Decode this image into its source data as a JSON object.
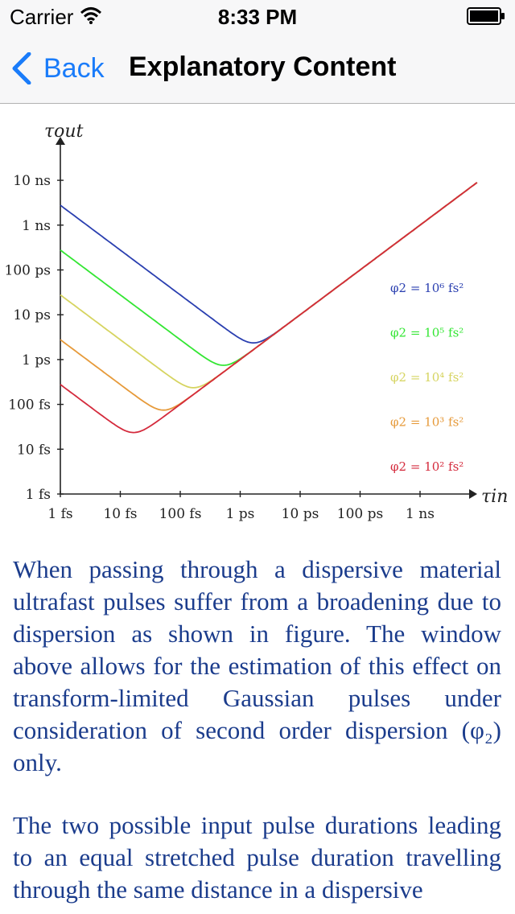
{
  "status_bar": {
    "carrier": "Carrier",
    "time": "8:33 PM"
  },
  "nav": {
    "back_label": "Back",
    "title": "Explanatory Content"
  },
  "chart_data": {
    "type": "line",
    "x_scale": "log",
    "y_scale": "log",
    "xlabel": "τin",
    "ylabel": "τout",
    "x_ticks": [
      "1 fs",
      "10 fs",
      "100 fs",
      "1 ps",
      "10 ps",
      "100 ps",
      "1 ns"
    ],
    "y_ticks": [
      "1 fs",
      "10 fs",
      "100 fs",
      "1 ps",
      "10 ps",
      "100 ps",
      "1 ns",
      "10 ns"
    ],
    "x_tick_values_s": [
      1e-15,
      1e-14,
      1e-13,
      1e-12,
      1e-11,
      1e-10,
      1e-09
    ],
    "y_tick_values_s": [
      1e-15,
      1e-14,
      1e-13,
      1e-12,
      1e-11,
      1e-10,
      1e-09,
      1e-08
    ],
    "series": [
      {
        "name": "φ2 = 10⁶ fs²",
        "phi2_fs2": 1000000,
        "color": "#2a3fb0"
      },
      {
        "name": "φ2 = 10⁵ fs²",
        "phi2_fs2": 100000,
        "color": "#33e633"
      },
      {
        "name": "φ2 = 10⁴ fs²",
        "phi2_fs2": 10000,
        "color": "#d6d460"
      },
      {
        "name": "φ2 = 10³ fs²",
        "phi2_fs2": 1000,
        "color": "#e69a3a"
      },
      {
        "name": "φ2 = 10² fs²",
        "phi2_fs2": 100,
        "color": "#d42a3c"
      }
    ],
    "grid": false,
    "legend": "right"
  },
  "body": {
    "paragraph1": "When passing through a dispersive material ultrafast pulses suffer from a broadening due to dispersion as shown in figure. The window above allows for the estimation of this effect on transform-limited Gaussian pulses under consideration of second order dispersion (φ₂) only.",
    "paragraph2": "The two possible input pulse durations leading to an equal stretched pulse duration travelling through the same distance in a dispersive"
  }
}
